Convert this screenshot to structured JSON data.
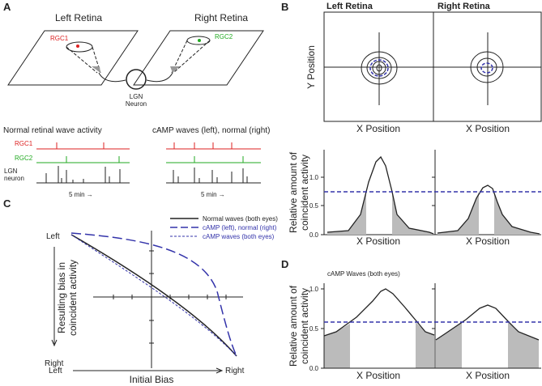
{
  "panel_a": {
    "label": "A",
    "left_retina": "Left Retina",
    "right_retina": "Right Retina",
    "rgc1": "RGC1",
    "rgc2": "RGC2",
    "lgn": [
      "LGN",
      "Neuron"
    ],
    "left_title": "Normal retinal wave activity",
    "right_title": "cAMP waves (left), normal (right)",
    "row_rgc1": "RGC1",
    "row_rgc2": "RGC2",
    "row_lgn": [
      "LGN",
      "neuron"
    ],
    "scale_left": "5 min →",
    "scale_right": "5 min →"
  },
  "panel_b": {
    "label": "B",
    "left_retina": "Left Retina",
    "right_retina": "Right Retina",
    "y_label": "Y Position",
    "x_label_left": "X Position",
    "x_label_right": "X Position",
    "y_label_2": [
      "Relative amount of",
      "coincident activity"
    ],
    "ticks": [
      "1.0",
      "0.5",
      "0.0"
    ],
    "x_label_left_2": "X Position",
    "x_label_right_2": "X Position"
  },
  "panel_c": {
    "label": "C",
    "legend": [
      "Normal waves (both eyes)",
      "cAMP (left), normal (right)",
      "cAMP waves (both eyes)"
    ],
    "y_top": "Left",
    "y_bottom": "Right",
    "y_label": [
      "Resulting bias in",
      "coincident activity"
    ],
    "x_left": "Left",
    "x_right": "Right",
    "x_label": "Initial Bias"
  },
  "panel_d": {
    "label": "D",
    "title": "cAMP Waves (both eyes)",
    "ticks": [
      "1.0",
      "0.5",
      "0.0"
    ],
    "y_label": [
      "Relative amount of",
      "coincident activity"
    ],
    "x_label_left": "X Position",
    "x_label_right": "X Position"
  }
}
